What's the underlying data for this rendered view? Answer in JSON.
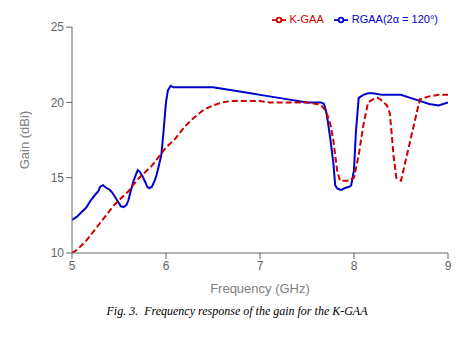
{
  "chart_data": {
    "type": "line",
    "xlabel": "Frequency (GHz)",
    "ylabel": "Gain (dBi)",
    "caption": "Fig. 3.  Frequency response of the gain for the K-GAA",
    "xlim": [
      5,
      9
    ],
    "ylim": [
      10,
      25
    ],
    "xticks": [
      5,
      6,
      7,
      8,
      9
    ],
    "yticks": [
      10,
      15,
      20,
      25
    ],
    "grid": false,
    "legend": "upper right",
    "series": [
      {
        "name": "RGAA(2α = 120°)",
        "color": "#0000cc",
        "line_style": "solid",
        "x": [
          5.0,
          5.05,
          5.1,
          5.15,
          5.2,
          5.25,
          5.28,
          5.3,
          5.33,
          5.36,
          5.4,
          5.43,
          5.46,
          5.5,
          5.52,
          5.55,
          5.58,
          5.6,
          5.62,
          5.65,
          5.68,
          5.7,
          5.72,
          5.75,
          5.78,
          5.8,
          5.82,
          5.85,
          5.88,
          5.9,
          5.92,
          5.95,
          5.97,
          6.0,
          6.02,
          6.05,
          6.08,
          6.1,
          6.15,
          6.2,
          6.3,
          6.4,
          6.5,
          6.6,
          6.7,
          6.8,
          6.9,
          7.0,
          7.1,
          7.2,
          7.3,
          7.4,
          7.5,
          7.6,
          7.65,
          7.68,
          7.7,
          7.72,
          7.75,
          7.78,
          7.8,
          7.82,
          7.85,
          7.87,
          7.9,
          7.92,
          7.95,
          7.97,
          8.0,
          8.02,
          8.05,
          8.1,
          8.15,
          8.2,
          8.3,
          8.4,
          8.5,
          8.6,
          8.7,
          8.8,
          8.9,
          9.0
        ],
        "values": [
          12.2,
          12.4,
          12.7,
          13.0,
          13.5,
          13.9,
          14.1,
          14.4,
          14.5,
          14.35,
          14.2,
          14.0,
          13.7,
          13.3,
          13.1,
          13.05,
          13.2,
          13.5,
          14.0,
          14.7,
          15.2,
          15.5,
          15.4,
          15.1,
          14.7,
          14.4,
          14.3,
          14.4,
          14.8,
          15.2,
          15.7,
          16.5,
          17.8,
          20.0,
          20.8,
          21.1,
          21.0,
          21.0,
          21.0,
          21.0,
          21.0,
          21.0,
          21.0,
          20.9,
          20.8,
          20.7,
          20.6,
          20.5,
          20.4,
          20.3,
          20.2,
          20.1,
          20.0,
          20.0,
          20.0,
          19.9,
          19.5,
          18.8,
          17.5,
          16.0,
          14.5,
          14.3,
          14.2,
          14.2,
          14.3,
          14.35,
          14.4,
          14.5,
          15.5,
          18.0,
          20.3,
          20.5,
          20.6,
          20.6,
          20.5,
          20.5,
          20.5,
          20.3,
          20.1,
          19.9,
          19.8,
          20.0
        ]
      },
      {
        "name": "K-GAA",
        "color": "#cc0000",
        "line_style": "dashed",
        "x": [
          5.0,
          5.05,
          5.1,
          5.15,
          5.2,
          5.25,
          5.3,
          5.35,
          5.4,
          5.45,
          5.5,
          5.55,
          5.6,
          5.65,
          5.7,
          5.75,
          5.8,
          5.85,
          5.9,
          5.95,
          6.0,
          6.05,
          6.1,
          6.2,
          6.3,
          6.4,
          6.5,
          6.6,
          6.7,
          6.8,
          6.9,
          7.0,
          7.1,
          7.2,
          7.3,
          7.4,
          7.5,
          7.6,
          7.65,
          7.68,
          7.7,
          7.72,
          7.75,
          7.78,
          7.8,
          7.82,
          7.85,
          7.9,
          7.95,
          8.0,
          8.05,
          8.1,
          8.15,
          8.2,
          8.25,
          8.28,
          8.3,
          8.35,
          8.38,
          8.4,
          8.42,
          8.45,
          8.5,
          8.6,
          8.7,
          8.8,
          8.9,
          9.0
        ],
        "values": [
          10.0,
          10.2,
          10.5,
          10.8,
          11.2,
          11.6,
          12.0,
          12.4,
          12.8,
          13.2,
          13.5,
          13.8,
          14.1,
          14.5,
          14.9,
          15.2,
          15.5,
          15.8,
          16.2,
          16.6,
          17.0,
          17.3,
          17.6,
          18.4,
          19.0,
          19.5,
          19.8,
          20.0,
          20.1,
          20.1,
          20.1,
          20.1,
          20.0,
          20.0,
          20.0,
          20.0,
          20.0,
          19.9,
          19.8,
          19.6,
          19.4,
          19.1,
          18.5,
          17.5,
          16.5,
          15.5,
          14.8,
          14.8,
          14.8,
          15.0,
          16.5,
          18.5,
          20.0,
          20.2,
          20.3,
          20.2,
          20.1,
          19.8,
          19.3,
          18.0,
          16.5,
          15.0,
          14.8,
          17.5,
          20.2,
          20.4,
          20.5,
          20.5
        ]
      }
    ]
  }
}
